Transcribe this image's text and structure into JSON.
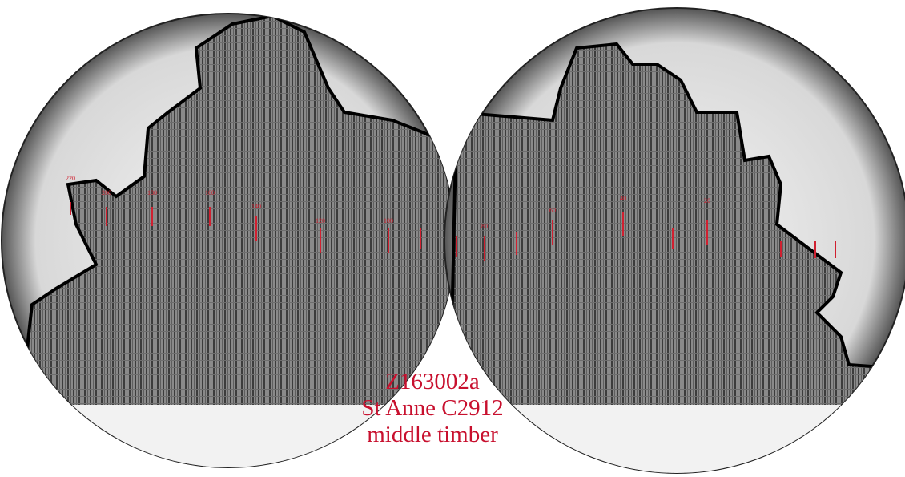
{
  "caption": {
    "lines": [
      "Z163002a",
      "St Anne C2912",
      "middle timber"
    ]
  },
  "ring_labels": [
    "220",
    "200",
    "180",
    "160",
    "140",
    "120",
    "100",
    "80",
    "60",
    "40",
    "20"
  ]
}
